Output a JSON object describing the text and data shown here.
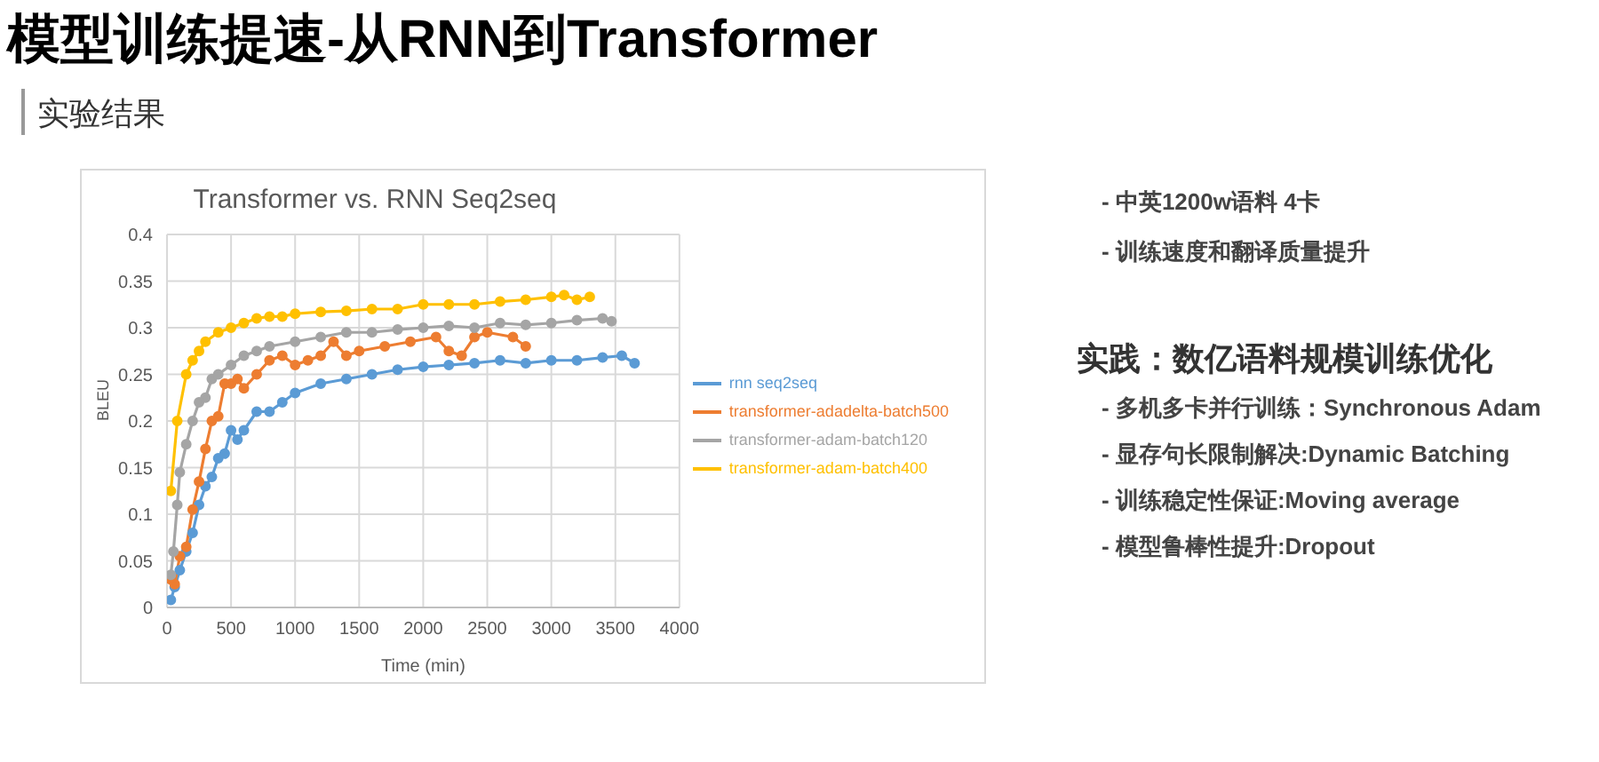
{
  "chart_data": {
    "type": "line",
    "title": "Transformer vs. RNN Seq2seq",
    "xlabel": "Time (min)",
    "ylabel": "BLEU",
    "annotations": [
      "模型训练提速-从RNN到Transformer",
      "实验结果",
      "- 中英1200w语料 4卡",
      "- 训练速度和翻译质量提升",
      "实践：数亿语料规模训练优化",
      "- 多机多卡并行训练：Synchronous Adam",
      "- 显存句长限制解决:Dynamic Batching",
      "- 训练稳定性保证:Moving average",
      "- 模型鲁棒性提升:Dropout"
    ],
    "xlim": [
      0,
      4000
    ],
    "xticks": [
      0,
      500,
      1000,
      1500,
      2000,
      2500,
      3000,
      3500,
      4000
    ],
    "ylim": [
      0,
      0.4
    ],
    "yticks": [
      0,
      0.05,
      0.1,
      0.15,
      0.2,
      0.25,
      0.3,
      0.35,
      0.4
    ],
    "grid": true,
    "legend": "right",
    "marker": "circle",
    "line_style": "solid",
    "series": [
      {
        "name": "rnn seq2seq",
        "color": "#5b9bd5",
        "x": [
          30,
          60,
          100,
          150,
          200,
          250,
          300,
          350,
          400,
          450,
          500,
          550,
          600,
          700,
          800,
          900,
          1000,
          1200,
          1400,
          1600,
          1800,
          2000,
          2200,
          2400,
          2600,
          2800,
          3000,
          3200,
          3400,
          3550,
          3650
        ],
        "values": [
          0.008,
          0.022,
          0.04,
          0.06,
          0.08,
          0.11,
          0.13,
          0.14,
          0.16,
          0.165,
          0.19,
          0.18,
          0.19,
          0.21,
          0.21,
          0.22,
          0.23,
          0.24,
          0.245,
          0.25,
          0.255,
          0.258,
          0.26,
          0.262,
          0.265,
          0.262,
          0.265,
          0.265,
          0.268,
          0.27,
          0.262
        ]
      },
      {
        "name": "transformer-adadelta-batch500",
        "color": "#ed7d31",
        "x": [
          30,
          60,
          100,
          150,
          200,
          250,
          300,
          350,
          400,
          450,
          500,
          550,
          600,
          700,
          800,
          900,
          1000,
          1100,
          1200,
          1300,
          1400,
          1500,
          1700,
          1900,
          2100,
          2200,
          2300,
          2400,
          2500,
          2700,
          2800
        ],
        "values": [
          0.03,
          0.025,
          0.055,
          0.065,
          0.105,
          0.135,
          0.17,
          0.2,
          0.205,
          0.24,
          0.24,
          0.245,
          0.235,
          0.25,
          0.265,
          0.27,
          0.26,
          0.265,
          0.27,
          0.285,
          0.27,
          0.275,
          0.28,
          0.285,
          0.29,
          0.275,
          0.27,
          0.29,
          0.295,
          0.29,
          0.28
        ]
      },
      {
        "name": "transformer-adam-batch120",
        "color": "#a5a5a5",
        "x": [
          30,
          50,
          80,
          100,
          150,
          200,
          250,
          300,
          350,
          400,
          500,
          600,
          700,
          800,
          1000,
          1200,
          1400,
          1600,
          1800,
          2000,
          2200,
          2400,
          2600,
          2800,
          3000,
          3200,
          3400,
          3470
        ],
        "values": [
          0.035,
          0.06,
          0.11,
          0.145,
          0.175,
          0.2,
          0.22,
          0.225,
          0.245,
          0.25,
          0.26,
          0.27,
          0.275,
          0.28,
          0.285,
          0.29,
          0.295,
          0.295,
          0.298,
          0.3,
          0.302,
          0.3,
          0.305,
          0.303,
          0.305,
          0.308,
          0.31,
          0.307
        ]
      },
      {
        "name": "transformer-adam-batch400",
        "color": "#ffc000",
        "x": [
          30,
          80,
          150,
          200,
          250,
          300,
          400,
          500,
          600,
          700,
          800,
          900,
          1000,
          1200,
          1400,
          1600,
          1800,
          2000,
          2200,
          2400,
          2600,
          2800,
          3000,
          3100,
          3200,
          3300
        ],
        "values": [
          0.125,
          0.2,
          0.25,
          0.265,
          0.275,
          0.285,
          0.295,
          0.3,
          0.305,
          0.31,
          0.312,
          0.312,
          0.315,
          0.317,
          0.318,
          0.32,
          0.32,
          0.325,
          0.325,
          0.325,
          0.328,
          0.33,
          0.333,
          0.335,
          0.33,
          0.333
        ]
      }
    ]
  }
}
